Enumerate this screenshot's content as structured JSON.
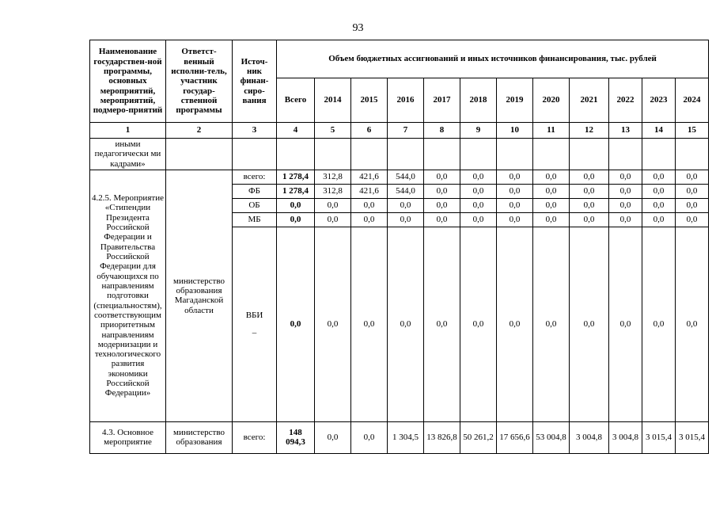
{
  "page": {
    "number": "93"
  },
  "table": {
    "header": {
      "col1": "Наименование государствен-ной программы, основных мероприятий, мероприятий, подмеро-приятий",
      "col2": "Ответст-венный исполни-тель, участник государ-ственной программы",
      "col3": "Источ-ник финан-сиро-вания",
      "amount_title": "Объем бюджетных ассигнований и иных источников финансирования, тыс. рублей",
      "years": [
        "Всего",
        "2014",
        "2015",
        "2016",
        "2017",
        "2018",
        "2019",
        "2020",
        "2021",
        "2022",
        "2023",
        "2024"
      ],
      "col_numbers": [
        "1",
        "2",
        "3",
        "4",
        "5",
        "6",
        "7",
        "8",
        "9",
        "10",
        "11",
        "12",
        "13",
        "14",
        "15"
      ]
    },
    "continuation_row": {
      "name": "иными педагогически ми кадрами»"
    },
    "block_4_2_5": {
      "name": "4.2.5. Мероприятие «Стипендии Президента Российской Федерации и Правительства Российской Федерации для обучающихся по направлениям подготовки (специальностям), соответствующим приоритетным направлениям модернизации и технологического развития экономики Российской Федерации»",
      "executor": "министерство образования Магаданской области",
      "rows": [
        {
          "source": "всего:",
          "values": [
            "1 278,4",
            "312,8",
            "421,6",
            "544,0",
            "0,0",
            "0,0",
            "0,0",
            "0,0",
            "0,0",
            "0,0",
            "0,0",
            "0,0"
          ]
        },
        {
          "source": "ФБ",
          "values": [
            "1 278,4",
            "312,8",
            "421,6",
            "544,0",
            "0,0",
            "0,0",
            "0,0",
            "0,0",
            "0,0",
            "0,0",
            "0,0",
            "0,0"
          ]
        },
        {
          "source": "ОБ",
          "values": [
            "0,0",
            "0,0",
            "0,0",
            "0,0",
            "0,0",
            "0,0",
            "0,0",
            "0,0",
            "0,0",
            "0,0",
            "0,0",
            "0,0"
          ]
        },
        {
          "source": "МБ",
          "values": [
            "0,0",
            "0,0",
            "0,0",
            "0,0",
            "0,0",
            "0,0",
            "0,0",
            "0,0",
            "0,0",
            "0,0",
            "0,0",
            "0,0"
          ]
        },
        {
          "source": "ВБИ\n–",
          "values": [
            "0,0",
            "0,0",
            "0,0",
            "0,0",
            "0,0",
            "0,0",
            "0,0",
            "0,0",
            "0,0",
            "0,0",
            "0,0",
            "0,0"
          ]
        }
      ]
    },
    "row_4_3": {
      "name": "4.3. Основное мероприятие",
      "executor": "министерство образования",
      "source": "всего:",
      "values": [
        "148 094,3",
        "0,0",
        "0,0",
        "1 304,5",
        "13 826,8",
        "50 261,2",
        "17 656,6",
        "53 004,8",
        "3 004,8",
        "3 004,8",
        "3 015,4",
        "3 015,4"
      ]
    }
  }
}
